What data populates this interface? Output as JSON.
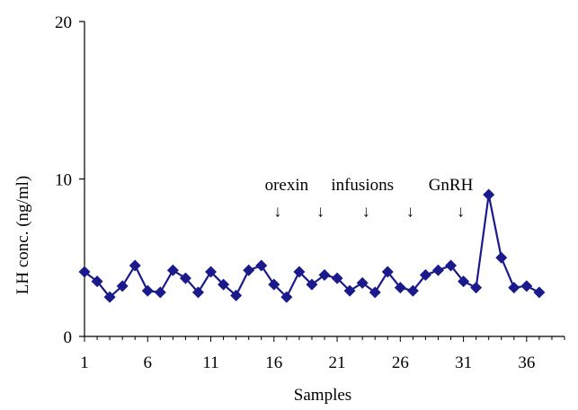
{
  "chart_data": {
    "type": "line",
    "title": "",
    "xlabel": "Samples",
    "ylabel": "LH conc. (ng/ml)",
    "xlim": [
      1,
      39
    ],
    "ylim": [
      0,
      20
    ],
    "x_ticks": [
      1,
      6,
      11,
      16,
      21,
      26,
      31,
      36
    ],
    "y_ticks": [
      0,
      10,
      20
    ],
    "grid": false,
    "legend": "none",
    "series": [
      {
        "color": "#1a1a8c",
        "marker": "diamond",
        "x": [
          1,
          2,
          3,
          4,
          5,
          6,
          7,
          8,
          9,
          10,
          11,
          12,
          13,
          14,
          15,
          16,
          17,
          18,
          19,
          20,
          21,
          22,
          23,
          24,
          25,
          26,
          27,
          28,
          29,
          30,
          31,
          32,
          33,
          34,
          35,
          36,
          37
        ],
        "y": [
          4.1,
          3.5,
          2.5,
          3.2,
          4.5,
          2.9,
          2.8,
          4.2,
          3.7,
          2.8,
          4.1,
          3.3,
          2.6,
          4.2,
          4.5,
          3.3,
          2.5,
          4.1,
          3.3,
          3.9,
          3.7,
          2.9,
          3.4,
          2.8,
          4.1,
          3.1,
          2.9,
          3.9,
          4.2,
          4.5,
          3.5,
          3.1,
          9.0,
          5.0,
          3.1,
          3.2,
          2.8
        ]
      }
    ],
    "annotations": [
      {
        "text": "orexin",
        "x": 17.0,
        "y": 9.3
      },
      {
        "text": "infusions",
        "x": 23.0,
        "y": 9.3
      },
      {
        "text": "GnRH",
        "x": 30.0,
        "y": 9.3
      }
    ],
    "arrows": [
      {
        "text": "↓",
        "x": 16.3,
        "y": 7.6
      },
      {
        "text": "↓",
        "x": 19.7,
        "y": 7.6
      },
      {
        "text": "↓",
        "x": 23.3,
        "y": 7.6
      },
      {
        "text": "↓",
        "x": 26.8,
        "y": 7.6
      },
      {
        "text": "↓",
        "x": 30.8,
        "y": 7.6
      }
    ]
  }
}
